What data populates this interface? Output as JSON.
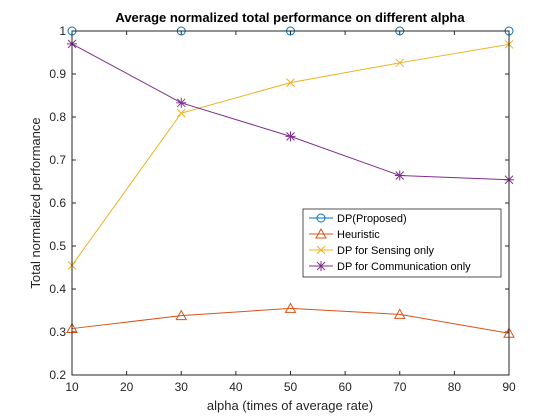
{
  "chart_data": {
    "type": "line",
    "title": "Average normalized total performance on different alpha",
    "xlabel": "alpha (times of average rate)",
    "ylabel": "Total normalized performance",
    "x": [
      10,
      30,
      50,
      70,
      90
    ],
    "xlim": [
      10,
      90
    ],
    "ylim": [
      0.2,
      1.0
    ],
    "xticks": [
      10,
      20,
      30,
      40,
      50,
      60,
      70,
      80,
      90
    ],
    "yticks": [
      0.2,
      0.3,
      0.4,
      0.5,
      0.6,
      0.7,
      0.8,
      0.9,
      1.0
    ],
    "xtick_labels": [
      "10",
      "20",
      "30",
      "40",
      "50",
      "60",
      "70",
      "80",
      "90"
    ],
    "ytick_labels": [
      "0.2",
      "0.3",
      "0.4",
      "0.5",
      "0.6",
      "0.7",
      "0.8",
      "0.9",
      "1"
    ],
    "grid": false,
    "legend_position": "center-right",
    "series": [
      {
        "name": "DP(Proposed)",
        "values": [
          1.0,
          1.0,
          1.0,
          1.0,
          1.0
        ],
        "color": "#0072BD",
        "marker": "circle"
      },
      {
        "name": "Heuristic",
        "values": [
          0.308,
          0.338,
          0.355,
          0.341,
          0.297
        ],
        "color": "#D95319",
        "marker": "triangle"
      },
      {
        "name": "DP for Sensing only",
        "values": [
          0.455,
          0.809,
          0.88,
          0.926,
          0.969
        ],
        "color": "#EDB120",
        "marker": "x"
      },
      {
        "name": "DP for Communication only",
        "values": [
          0.97,
          0.833,
          0.755,
          0.664,
          0.654
        ],
        "color": "#7E2F8E",
        "marker": "asterisk"
      }
    ]
  }
}
